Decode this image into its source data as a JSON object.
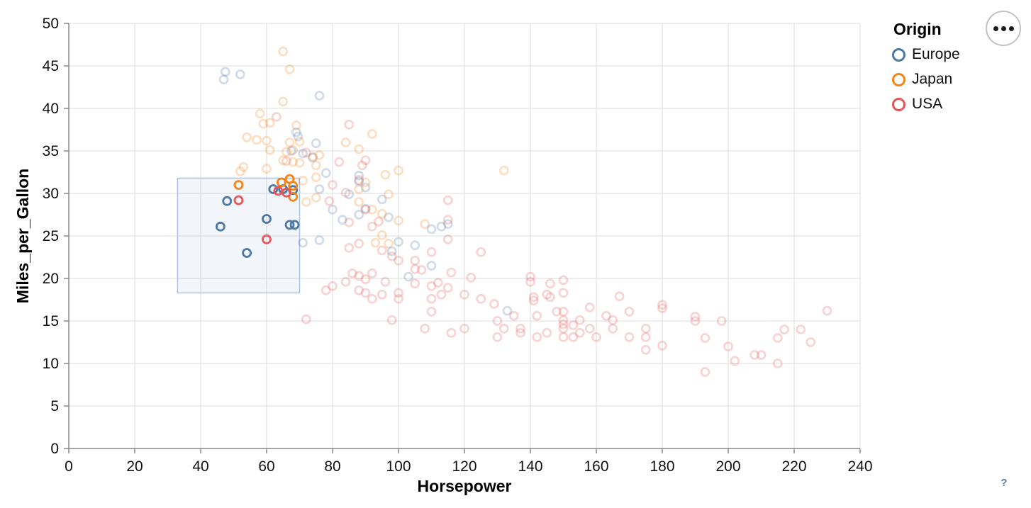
{
  "legend": {
    "title": "Origin",
    "items": [
      {
        "label": "Europe",
        "color": "#4c78a8"
      },
      {
        "label": "Japan",
        "color": "#f58518"
      },
      {
        "label": "USA",
        "color": "#e45756"
      }
    ]
  },
  "controls": {
    "menu_icon": "ellipsis-menu",
    "help_label": "?"
  },
  "chart_data": {
    "type": "scatter",
    "title": "",
    "xlabel": "Horsepower",
    "ylabel": "Miles_per_Gallon",
    "xlim": [
      0,
      240
    ],
    "ylim": [
      0,
      50
    ],
    "x_ticks": [
      0,
      20,
      40,
      60,
      80,
      100,
      120,
      140,
      160,
      180,
      200,
      220,
      240
    ],
    "y_ticks": [
      0,
      5,
      10,
      15,
      20,
      25,
      30,
      35,
      40,
      45,
      50
    ],
    "grid": true,
    "legend_position": "top-right",
    "point_style": {
      "radius": 5.5,
      "stroke_width": 2.8,
      "unselected_opacity": 0.25,
      "selected_opacity": 1
    },
    "brush": {
      "x": [
        33,
        70
      ],
      "y": [
        18.3,
        31.8
      ],
      "fill": "#6a96d8",
      "fill_opacity": 0.09,
      "stroke": "#a9c2e8"
    },
    "series": [
      {
        "name": "Europe",
        "color": "#4c78a8",
        "selected": [
          [
            48,
            29.1
          ],
          [
            46,
            26.1
          ],
          [
            54,
            23.0
          ],
          [
            60,
            27.0
          ],
          [
            62,
            30.5
          ],
          [
            65,
            30.5
          ],
          [
            67,
            26.3
          ],
          [
            68.5,
            26.3
          ],
          [
            68,
            30.4
          ]
        ],
        "unselected": [
          [
            47.5,
            44.3
          ],
          [
            52,
            44.0
          ],
          [
            47,
            43.4
          ],
          [
            76,
            41.5
          ],
          [
            69,
            37.2
          ],
          [
            69.5,
            36.7
          ],
          [
            67.5,
            35.0
          ],
          [
            71,
            34.7
          ],
          [
            75,
            35.9
          ],
          [
            74,
            34.2
          ],
          [
            88,
            32.1
          ],
          [
            88,
            31.4
          ],
          [
            78,
            32.4
          ],
          [
            90,
            30.7
          ],
          [
            85,
            29.9
          ],
          [
            95,
            29.3
          ],
          [
            90,
            28.2
          ],
          [
            88,
            27.5
          ],
          [
            97,
            27.2
          ],
          [
            76,
            30.5
          ],
          [
            80,
            28.1
          ],
          [
            83,
            26.9
          ],
          [
            71,
            24.2
          ],
          [
            76,
            24.5
          ],
          [
            100,
            24.3
          ],
          [
            105,
            23.9
          ],
          [
            113,
            26.1
          ],
          [
            110,
            25.8
          ],
          [
            115,
            26.4
          ],
          [
            103,
            20.2
          ],
          [
            110,
            21.5
          ],
          [
            98,
            23.2
          ],
          [
            133,
            16.2
          ]
        ]
      },
      {
        "name": "Japan",
        "color": "#f58518",
        "selected": [
          [
            51.5,
            31.0
          ],
          [
            64.5,
            31.3
          ],
          [
            67,
            31.7
          ],
          [
            68,
            30.9
          ],
          [
            68,
            29.6
          ]
        ],
        "unselected": [
          [
            65,
            46.7
          ],
          [
            67,
            44.6
          ],
          [
            65,
            40.8
          ],
          [
            58,
            39.4
          ],
          [
            61,
            38.3
          ],
          [
            59,
            38.2
          ],
          [
            69,
            38.0
          ],
          [
            54,
            36.6
          ],
          [
            57,
            36.3
          ],
          [
            60,
            36.2
          ],
          [
            67,
            36.0
          ],
          [
            61,
            35.1
          ],
          [
            68,
            35.1
          ],
          [
            66,
            34.9
          ],
          [
            74,
            34.3
          ],
          [
            76,
            34.5
          ],
          [
            65,
            33.9
          ],
          [
            70,
            33.6
          ],
          [
            53,
            33.1
          ],
          [
            60,
            32.9
          ],
          [
            52,
            32.6
          ],
          [
            68,
            33.7
          ],
          [
            70,
            36.1
          ],
          [
            75,
            33.3
          ],
          [
            92,
            37.0
          ],
          [
            84,
            36.0
          ],
          [
            88,
            35.2
          ],
          [
            96,
            32.2
          ],
          [
            100,
            32.7
          ],
          [
            132,
            32.7
          ],
          [
            75,
            31.9
          ],
          [
            71,
            31.5
          ],
          [
            90,
            31.3
          ],
          [
            88,
            30.5
          ],
          [
            97,
            29.9
          ],
          [
            75,
            29.5
          ],
          [
            72,
            29.0
          ],
          [
            88,
            29.0
          ],
          [
            92,
            28.1
          ],
          [
            95,
            27.6
          ],
          [
            100,
            26.8
          ],
          [
            108,
            26.4
          ],
          [
            95,
            25.1
          ],
          [
            93,
            24.2
          ],
          [
            97,
            24.1
          ]
        ]
      },
      {
        "name": "USA",
        "color": "#e45756",
        "selected": [
          [
            51.5,
            29.2
          ],
          [
            60,
            24.6
          ],
          [
            63.5,
            30.3
          ],
          [
            66,
            30.1
          ]
        ],
        "unselected": [
          [
            63,
            39.0
          ],
          [
            85,
            38.1
          ],
          [
            72,
            34.8
          ],
          [
            90,
            33.9
          ],
          [
            89,
            33.3
          ],
          [
            82,
            33.7
          ],
          [
            66,
            33.8
          ],
          [
            88,
            31.6
          ],
          [
            80,
            31.0
          ],
          [
            84,
            30.1
          ],
          [
            79,
            29.1
          ],
          [
            90,
            28.1
          ],
          [
            85,
            26.6
          ],
          [
            92,
            26.1
          ],
          [
            94,
            26.7
          ],
          [
            115,
            29.2
          ],
          [
            115,
            26.9
          ],
          [
            115,
            24.6
          ],
          [
            125,
            23.1
          ],
          [
            110,
            23.1
          ],
          [
            105,
            22.1
          ],
          [
            88,
            24.1
          ],
          [
            85,
            23.6
          ],
          [
            95,
            23.3
          ],
          [
            98,
            22.6
          ],
          [
            100,
            22.1
          ],
          [
            105,
            21.1
          ],
          [
            92,
            20.6
          ],
          [
            86,
            20.6
          ],
          [
            88,
            20.3
          ],
          [
            90,
            19.9
          ],
          [
            84,
            19.6
          ],
          [
            90,
            18.3
          ],
          [
            88,
            18.6
          ],
          [
            95,
            18.1
          ],
          [
            92,
            17.6
          ],
          [
            100,
            18.3
          ],
          [
            100,
            17.6
          ],
          [
            98,
            15.1
          ],
          [
            72,
            15.2
          ],
          [
            78,
            18.6
          ],
          [
            80,
            19.1
          ],
          [
            96,
            19.6
          ],
          [
            105,
            19.4
          ],
          [
            107,
            21.0
          ],
          [
            110,
            19.1
          ],
          [
            112,
            19.5
          ],
          [
            115,
            18.9
          ],
          [
            116,
            20.7
          ],
          [
            110,
            17.6
          ],
          [
            110,
            16.1
          ],
          [
            120,
            18.1
          ],
          [
            122,
            20.1
          ],
          [
            125,
            17.6
          ],
          [
            129,
            17.0
          ],
          [
            130,
            15.0
          ],
          [
            130,
            13.1
          ],
          [
            132,
            14.1
          ],
          [
            137,
            14.1
          ],
          [
            135,
            15.6
          ],
          [
            137,
            13.6
          ],
          [
            140,
            20.2
          ],
          [
            140,
            19.6
          ],
          [
            141,
            17.8
          ],
          [
            141,
            17.4
          ],
          [
            142,
            15.6
          ],
          [
            142,
            13.1
          ],
          [
            145,
            18.1
          ],
          [
            145,
            13.6
          ],
          [
            146,
            19.4
          ],
          [
            146,
            17.8
          ],
          [
            148,
            16.1
          ],
          [
            150,
            19.8
          ],
          [
            150,
            18.3
          ],
          [
            150,
            16.1
          ],
          [
            150,
            15.1
          ],
          [
            150,
            14.6
          ],
          [
            150,
            14.1
          ],
          [
            150,
            13.1
          ],
          [
            153,
            14.5
          ],
          [
            153,
            13.1
          ],
          [
            155,
            15.1
          ],
          [
            155,
            13.6
          ],
          [
            158,
            14.1
          ],
          [
            158,
            16.6
          ],
          [
            160,
            13.1
          ],
          [
            163,
            15.6
          ],
          [
            165,
            15.1
          ],
          [
            165,
            14.1
          ],
          [
            167,
            17.9
          ],
          [
            170,
            16.1
          ],
          [
            170,
            13.1
          ],
          [
            175,
            14.1
          ],
          [
            175,
            13.1
          ],
          [
            175,
            11.6
          ],
          [
            180,
            16.9
          ],
          [
            180,
            16.5
          ],
          [
            180,
            12.1
          ],
          [
            190,
            15.5
          ],
          [
            190,
            15.0
          ],
          [
            193,
            13.0
          ],
          [
            193,
            9.0
          ],
          [
            198,
            15.0
          ],
          [
            200,
            12.0
          ],
          [
            202,
            10.3
          ],
          [
            208,
            11.0
          ],
          [
            210,
            11.0
          ],
          [
            215,
            10.0
          ],
          [
            215,
            13.0
          ],
          [
            217,
            14.0
          ],
          [
            222,
            14.0
          ],
          [
            225,
            12.5
          ],
          [
            230,
            16.2
          ],
          [
            120,
            14.1
          ],
          [
            116,
            13.6
          ],
          [
            108,
            14.1
          ],
          [
            113,
            18.1
          ]
        ]
      }
    ]
  }
}
